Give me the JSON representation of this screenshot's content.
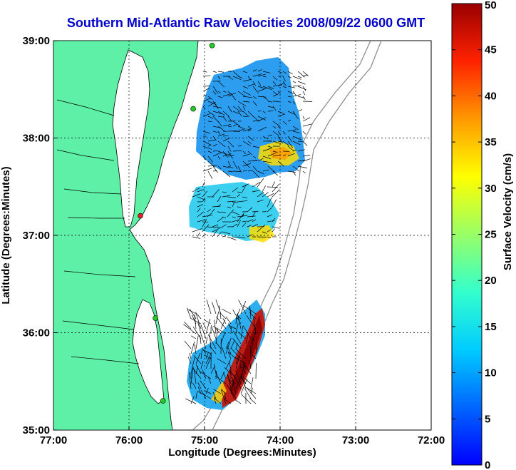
{
  "chart_data": {
    "type": "map",
    "title": "Southern Mid-Atlantic Raw Velocities 2008/09/22 0600 GMT",
    "xlabel": "Longitude (Degrees:Minutes)",
    "ylabel": "Latitude (Degrees:Minutes)",
    "x_ticks": [
      "77:00",
      "76:00",
      "75:00",
      "74:00",
      "73:00",
      "72:00"
    ],
    "y_ticks": [
      "39:00",
      "38:00",
      "37:00",
      "36:00",
      "35:00"
    ],
    "xlim": [
      -77,
      -72
    ],
    "ylim": [
      35,
      39
    ],
    "grid": true,
    "colorbar": {
      "label": "Surface Velocity (cm/s)",
      "ticks": [
        "50",
        "45",
        "40",
        "35",
        "30",
        "25",
        "20",
        "15",
        "10",
        "5",
        "0"
      ],
      "range": [
        0,
        50
      ],
      "colormap": "jet"
    },
    "land_color": "#5ef0a6",
    "stations": [
      {
        "lon": -74.9,
        "lat": 38.95,
        "color": "#22cc22"
      },
      {
        "lon": -75.85,
        "lat": 37.2,
        "color": "#dd2222"
      },
      {
        "lon": -75.15,
        "lat": 38.3,
        "color": "#22cc22"
      },
      {
        "lon": -75.65,
        "lat": 36.15,
        "color": "#22cc22"
      },
      {
        "lon": -75.55,
        "lat": 35.3,
        "color": "#22cc22"
      }
    ]
  }
}
